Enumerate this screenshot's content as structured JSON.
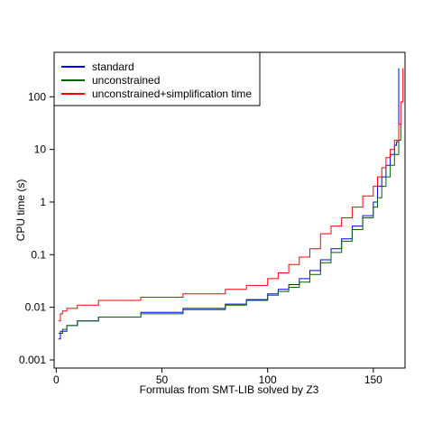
{
  "chart_data": {
    "type": "line",
    "title": "",
    "xlabel": "Formulas from SMT-LIB solved by Z3",
    "ylabel": "CPU time (s)",
    "xlim": [
      -1,
      165
    ],
    "ylim": [
      0.0007,
      700
    ],
    "yscale": "log",
    "xticks": [
      0,
      50,
      100,
      150
    ],
    "yticks": [
      {
        "value": 0.001,
        "label": "0.001"
      },
      {
        "value": 0.01,
        "label": "0.01"
      },
      {
        "value": 0.1,
        "label": "0.1"
      },
      {
        "value": 1,
        "label": "1"
      },
      {
        "value": 10,
        "label": "10"
      },
      {
        "value": 100,
        "label": "100"
      }
    ],
    "grid": false,
    "legend": "top-left",
    "series": [
      {
        "name": "standard",
        "color": "#0000ff",
        "x": [
          1,
          2,
          5,
          10,
          20,
          40,
          60,
          80,
          90,
          100,
          105,
          110,
          115,
          120,
          125,
          130,
          135,
          140,
          145,
          150,
          152,
          154,
          156,
          158,
          160,
          161,
          162
        ],
        "y": [
          0.0025,
          0.0035,
          0.0045,
          0.0055,
          0.0065,
          0.008,
          0.0095,
          0.0115,
          0.014,
          0.018,
          0.022,
          0.027,
          0.035,
          0.05,
          0.08,
          0.13,
          0.2,
          0.35,
          0.55,
          1.0,
          2.0,
          3.0,
          5.0,
          8.0,
          12,
          14,
          350
        ]
      },
      {
        "name": "unconstrained",
        "color": "#006400",
        "x": [
          1,
          3,
          5,
          10,
          20,
          40,
          60,
          80,
          90,
          100,
          105,
          110,
          115,
          120,
          125,
          130,
          135,
          140,
          145,
          150,
          152,
          154,
          156,
          158,
          160,
          162,
          163
        ],
        "y": [
          0.0032,
          0.0038,
          0.0045,
          0.0055,
          0.0065,
          0.0075,
          0.009,
          0.011,
          0.0135,
          0.017,
          0.02,
          0.024,
          0.03,
          0.042,
          0.07,
          0.11,
          0.18,
          0.3,
          0.5,
          0.8,
          1.2,
          2.0,
          3.0,
          5.0,
          8.0,
          15,
          30
        ]
      },
      {
        "name": "unconstrained+simplification time",
        "color": "#ff0000",
        "x": [
          1,
          2,
          3,
          5,
          10,
          20,
          40,
          60,
          80,
          90,
          100,
          105,
          110,
          115,
          120,
          125,
          130,
          135,
          140,
          145,
          150,
          152,
          154,
          156,
          158,
          160,
          162,
          163,
          164
        ],
        "y": [
          0.0055,
          0.0075,
          0.0085,
          0.0095,
          0.011,
          0.0135,
          0.0155,
          0.018,
          0.022,
          0.026,
          0.035,
          0.045,
          0.065,
          0.09,
          0.13,
          0.25,
          0.35,
          0.5,
          0.8,
          1.3,
          2.0,
          3.0,
          4.5,
          7.0,
          10,
          15,
          30,
          80,
          350
        ]
      }
    ]
  }
}
